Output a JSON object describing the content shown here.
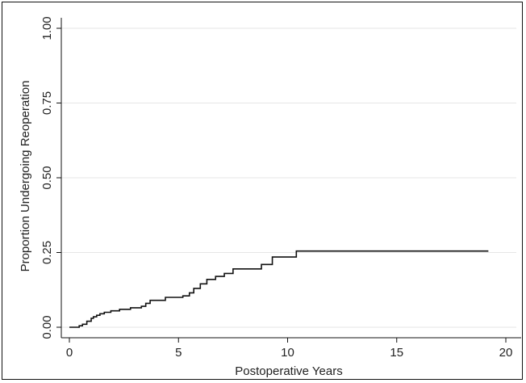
{
  "chart_data": {
    "type": "line",
    "xlabel": "Postoperative Years",
    "ylabel": "Proportion Undergoing Reoperation",
    "xlim": [
      0,
      20
    ],
    "ylim": [
      0,
      1
    ],
    "xticks": [
      "0",
      "5",
      "10",
      "15",
      "20"
    ],
    "yticks": [
      "0.00",
      "0.25",
      "0.50",
      "0.75",
      "1.00"
    ],
    "grid": "horizontal",
    "legend": "none",
    "line_color": "#111111",
    "grid_color": "#e6e6e6",
    "series": [
      {
        "step": true,
        "x": [
          0,
          0.45,
          0.6,
          0.8,
          1.0,
          1.1,
          1.25,
          1.4,
          1.6,
          1.9,
          2.3,
          2.8,
          3.3,
          3.5,
          3.7,
          4.4,
          5.2,
          5.5,
          5.7,
          6.0,
          6.3,
          6.7,
          7.1,
          7.5,
          7.8,
          8.8,
          9.3,
          10.4,
          19.2
        ],
        "y": [
          0.0,
          0.005,
          0.01,
          0.02,
          0.03,
          0.035,
          0.04,
          0.045,
          0.05,
          0.055,
          0.06,
          0.065,
          0.07,
          0.08,
          0.09,
          0.1,
          0.105,
          0.115,
          0.13,
          0.145,
          0.16,
          0.17,
          0.18,
          0.195,
          0.195,
          0.21,
          0.235,
          0.255,
          0.255
        ]
      }
    ]
  }
}
